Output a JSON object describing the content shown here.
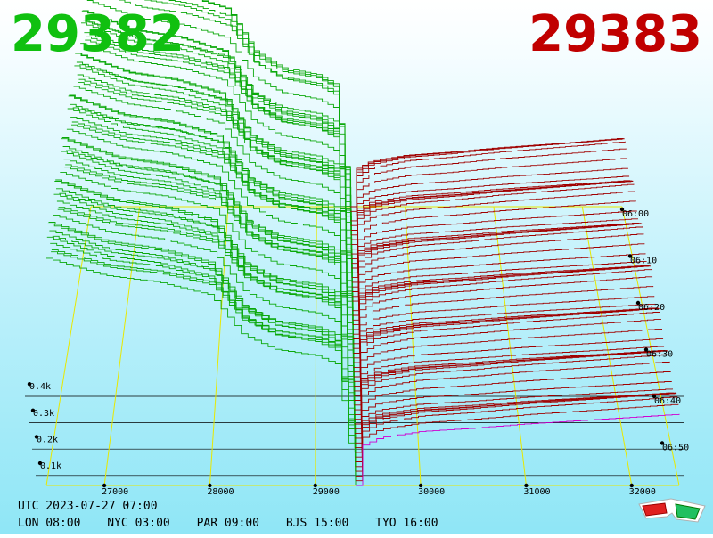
{
  "prices": {
    "bid": "29382",
    "ask": "29383"
  },
  "colors": {
    "bid": "#10c010",
    "ask": "#c00000",
    "bid_lines": "#0aa80a",
    "ask_lines": "#a00000",
    "latest_ask": "#d000d0",
    "grid": "#e8e800",
    "base_lines": "#000000"
  },
  "chart_data": {
    "type": "3d-depth",
    "x_axis": {
      "ticks": [
        27000,
        28000,
        29000,
        30000,
        31000,
        32000
      ],
      "range": [
        26450,
        32450
      ]
    },
    "volume_axis": {
      "ticks": [
        "0.1k",
        "0.2k",
        "0.3k",
        "0.4k"
      ],
      "values": [
        100,
        200,
        300,
        400
      ]
    },
    "time_axis": {
      "ticks": [
        "06:00",
        "06:10",
        "06:20",
        "06:30",
        "06:40",
        "06:50"
      ]
    },
    "series": [
      {
        "side": "bid",
        "price": [
          26450,
          27000,
          27500,
          28000,
          28300,
          28600,
          29000,
          29200,
          29382
        ],
        "cumulative_volume": [
          1050,
          970,
          940,
          880,
          700,
          630,
          600,
          560,
          0
        ]
      },
      {
        "side": "ask",
        "price": [
          29383,
          29420,
          29600,
          30000,
          30500,
          31000,
          31500,
          32000,
          32450
        ],
        "cumulative_volume": [
          0,
          180,
          220,
          250,
          265,
          285,
          300,
          315,
          330
        ]
      }
    ],
    "snapshots": 60,
    "grid": true
  },
  "info": {
    "utc": "UTC 2023-07-27 07:00",
    "cities": [
      "LON 08:00",
      "NYC 03:00",
      "PAR 09:00",
      "BJS 15:00",
      "TYO 16:00"
    ]
  },
  "icon": "3d-glasses-icon"
}
